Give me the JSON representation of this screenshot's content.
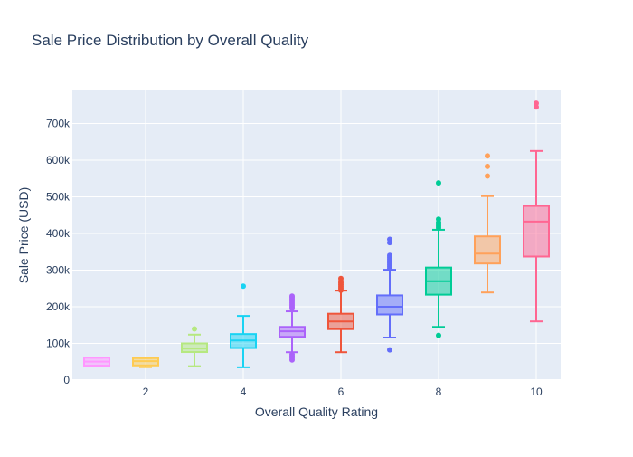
{
  "chart_data": {
    "type": "box",
    "title": "Sale Price Distribution by Overall Quality",
    "xlabel": "Overall Quality Rating",
    "ylabel": "Sale Price (USD)",
    "xlim": [
      0.5,
      10.5
    ],
    "ylim": [
      0,
      790000
    ],
    "xticks": [
      2,
      4,
      6,
      8,
      10
    ],
    "yticks": [
      0,
      100000,
      200000,
      300000,
      400000,
      500000,
      600000,
      700000
    ],
    "ytick_labels": [
      "0",
      "100k",
      "200k",
      "300k",
      "400k",
      "500k",
      "600k",
      "700k"
    ],
    "grid": true,
    "legend": "none",
    "series": [
      {
        "x": 1,
        "color": "#FF97FF",
        "min": 39300,
        "q1": 39300,
        "median": 50150,
        "q3": 61000,
        "max": 61000,
        "outliers": []
      },
      {
        "x": 2,
        "color": "#FECB52",
        "min": 35300,
        "q1": 40000,
        "median": 51470,
        "q3": 60000,
        "max": 60000,
        "outliers": []
      },
      {
        "x": 3,
        "color": "#B6E880",
        "min": 37900,
        "q1": 76500,
        "median": 86250,
        "q3": 100000,
        "max": 124000,
        "outliers": [
          139600
        ]
      },
      {
        "x": 4,
        "color": "#19D3F3",
        "min": 34900,
        "q1": 87500,
        "median": 108000,
        "q3": 125500,
        "max": 175000,
        "outliers": [
          256000
        ]
      },
      {
        "x": 5,
        "color": "#AB63FA",
        "min": 76000,
        "q1": 118000,
        "median": 133000,
        "q3": 145000,
        "max": 187500,
        "outliers": [
          55000,
          60000,
          65000,
          70000,
          195000,
          200000,
          205000,
          210000,
          215000,
          220000,
          225000,
          228950
        ]
      },
      {
        "x": 6,
        "color": "#EF553B",
        "min": 76000,
        "q1": 139000,
        "median": 160000,
        "q3": 181000,
        "max": 244000,
        "outliers": [
          245000,
          250000,
          255000,
          260000,
          265000,
          270000,
          277000
        ]
      },
      {
        "x": 7,
        "color": "#636EFA",
        "min": 116000,
        "q1": 179000,
        "median": 200000,
        "q3": 231000,
        "max": 301000,
        "outliers": [
          82500,
          305000,
          310000,
          315000,
          320000,
          325000,
          330000,
          335000,
          340000,
          375000,
          383970
        ]
      },
      {
        "x": 8,
        "color": "#00CC96",
        "min": 145000,
        "q1": 233000,
        "median": 269750,
        "q3": 307000,
        "max": 410000,
        "outliers": [
          122000,
          415000,
          420000,
          425000,
          430000,
          438780,
          538000
        ]
      },
      {
        "x": 9,
        "color": "#FFA15A",
        "min": 239000,
        "q1": 318000,
        "median": 345000,
        "q3": 392000,
        "max": 501837,
        "outliers": [
          556581,
          582933,
          611657
        ]
      },
      {
        "x": 10,
        "color": "#FF6692",
        "min": 160000,
        "q1": 337000,
        "median": 432390,
        "q3": 475000,
        "max": 625000,
        "outliers": [
          745000,
          755000
        ]
      }
    ]
  }
}
